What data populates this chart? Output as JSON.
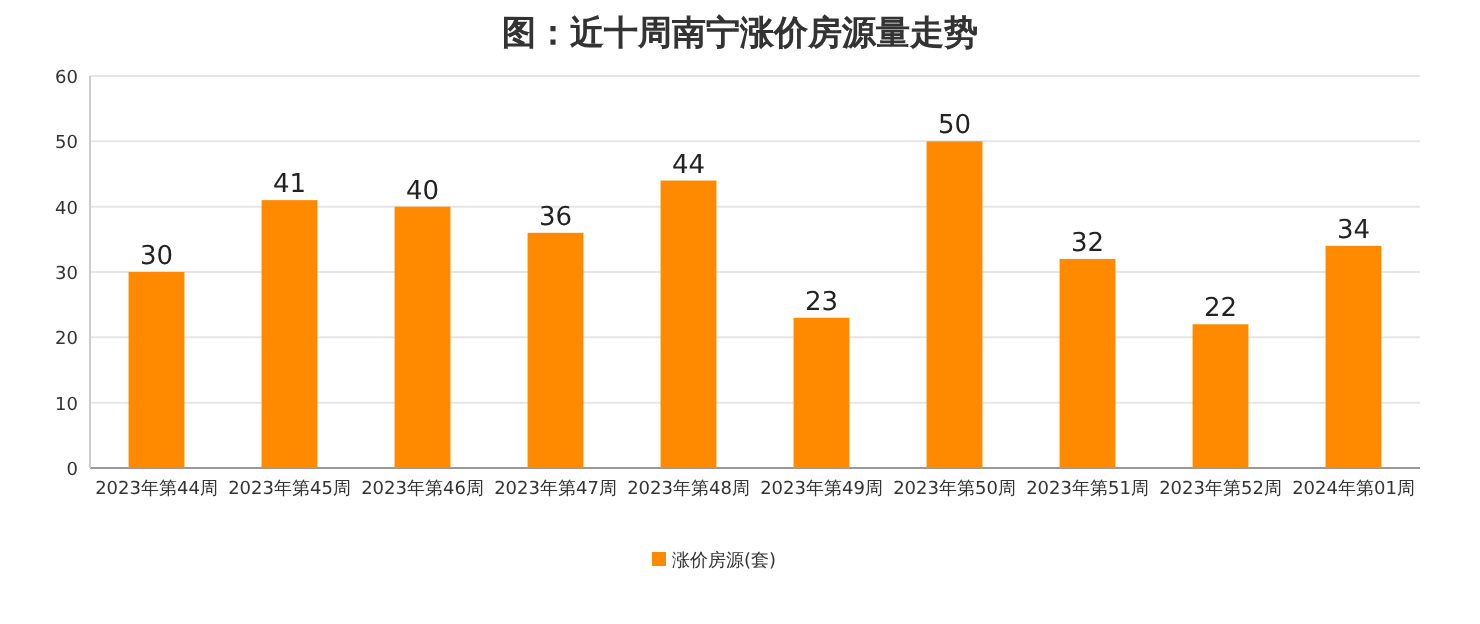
{
  "chart_data": {
    "type": "bar",
    "title": "图：近十周南宁涨价房源量走势",
    "categories": [
      "2023年第44周",
      "2023年第45周",
      "2023年第46周",
      "2023年第47周",
      "2023年第48周",
      "2023年第49周",
      "2023年第50周",
      "2023年第51周",
      "2023年第52周",
      "2024年第01周"
    ],
    "series": [
      {
        "name": "涨价房源(套)",
        "color": "#ff8a00",
        "values": [
          30,
          41,
          40,
          36,
          44,
          23,
          50,
          32,
          22,
          34
        ]
      }
    ],
    "ylim": [
      0,
      60
    ],
    "yticks": [
      0,
      10,
      20,
      30,
      40,
      50,
      60
    ],
    "grid": "y",
    "legend": "bottom",
    "data_labels": true
  }
}
